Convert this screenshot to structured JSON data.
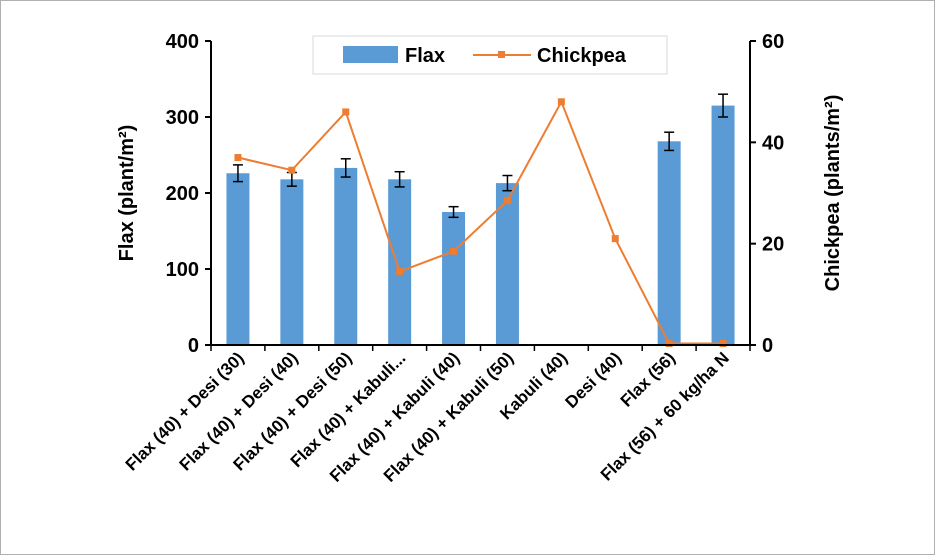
{
  "chart_data": {
    "type": "bar",
    "categories": [
      "Flax (40)  + Desi (30)",
      "Flax (40) + Desi (40)",
      "Flax (40) + Desi (50)",
      "Flax (40)  + Kabuli...",
      "Flax (40) + Kabuli (40)",
      "Flax (40) + Kabuli (50)",
      "Kabuli  (40)",
      "Desi (40)",
      "Flax (56)",
      "Flax (56) + 60 kg/ha N"
    ],
    "series": [
      {
        "name": "Flax",
        "type": "bar",
        "axis": "left",
        "color": "#5b9bd5",
        "values": [
          226,
          218,
          233,
          218,
          175,
          213,
          null,
          null,
          268,
          315
        ],
        "errors": [
          11,
          9,
          12,
          10,
          7,
          10,
          null,
          null,
          12,
          15
        ]
      },
      {
        "name": "Chickpea",
        "type": "line",
        "axis": "right",
        "color": "#ed7d31",
        "values": [
          37,
          34.5,
          46,
          14.5,
          18.5,
          28.5,
          48,
          21,
          0.3,
          0.3
        ]
      }
    ],
    "ylabel": "Flax (plant/m²)",
    "y2label": "Chickpea (plants/m²)",
    "ylim": [
      0,
      400
    ],
    "y2lim": [
      0,
      60
    ],
    "yticks": [
      "0",
      "100",
      "200",
      "300",
      "400"
    ],
    "y2ticks": [
      "0",
      "20",
      "40",
      "60"
    ],
    "legend_position": "top-center",
    "grid": false
  }
}
